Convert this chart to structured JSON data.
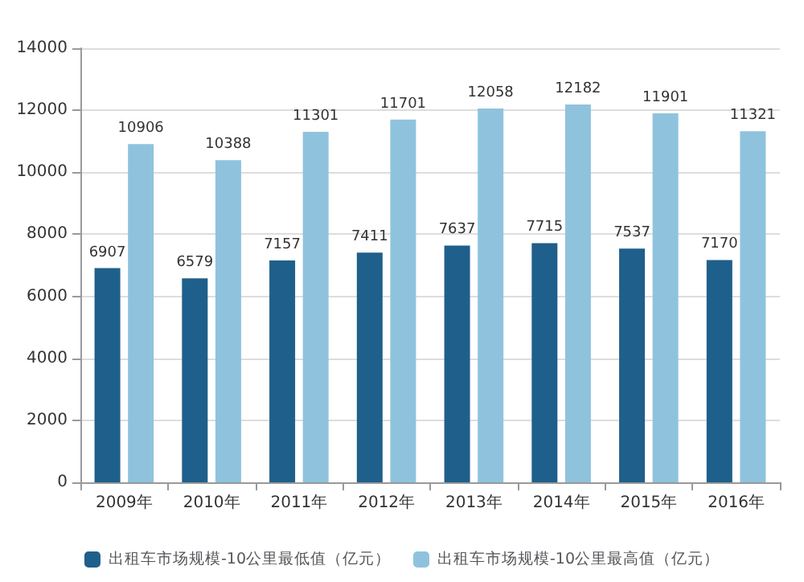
{
  "chart_data": {
    "type": "bar",
    "categories": [
      "2009年",
      "2010年",
      "2011年",
      "2012年",
      "2013年",
      "2014年",
      "2015年",
      "2016年"
    ],
    "series": [
      {
        "name": "出租车市场规模-10公里最低值（亿元）",
        "color": "#1f5f8b",
        "values": [
          6907,
          6579,
          7157,
          7411,
          7637,
          7715,
          7537,
          7170
        ]
      },
      {
        "name": "出租车市场规模-10公里最高值（亿元）",
        "color": "#8fc3dd",
        "values": [
          10906,
          10388,
          11301,
          11701,
          12058,
          12182,
          11901,
          11321
        ]
      }
    ],
    "ylim": [
      0,
      14000
    ],
    "yticks": [
      0,
      2000,
      4000,
      6000,
      8000,
      10000,
      12000,
      14000
    ],
    "grid": "y",
    "legend": "bottom",
    "data_labels": true
  }
}
